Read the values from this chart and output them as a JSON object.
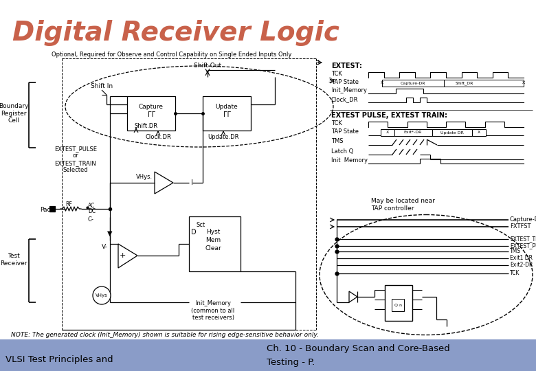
{
  "title": "Digital Receiver Logic",
  "title_color": "#c8614a",
  "title_fontsize": 28,
  "bg_color": "#ffffff",
  "footer_bg": "#8a9cc8",
  "footer_left": "VLSI Test Principles and",
  "footer_right1": "Ch. 10 - Boundary Scan and Core-Based",
  "footer_right2": "Testing - P.",
  "note_text": "NOTE: The generated clock (Init_Memory) shown is suitable for rising edge-sensitive behavior only.",
  "extest_label": "EXTEST:",
  "extest_pulse_label": "EXTEST PULSE, EXTEST TRAIN:"
}
